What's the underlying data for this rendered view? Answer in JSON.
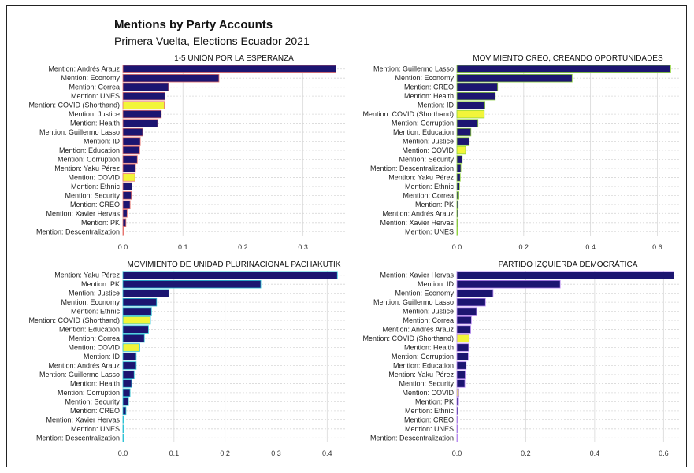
{
  "title": "Mentions by Party Accounts",
  "subtitle": "Primera Vuelta, Elections Ecuador 2021",
  "colors": {
    "bar_fill": "#1c1571",
    "highlight_fill": "#f2f53a",
    "grid": "#d8d8d8"
  },
  "chart_data": [
    {
      "type": "bar",
      "orientation": "horizontal",
      "title": "1-5 UNIÓN POR LA ESPERANZA",
      "outline_color": "#e8746e",
      "xlim": [
        0,
        0.37
      ],
      "xticks": [
        0.0,
        0.1,
        0.2,
        0.3
      ],
      "xtick_labels": [
        "0.0",
        "0.1",
        "0.2",
        "0.3"
      ],
      "categories": [
        "Mention: Andrés Arauz",
        "Mention: Economy",
        "Mention: Correa",
        "Mention: UNES",
        "Mention: COVID (Shorthand)",
        "Mention: Justice",
        "Mention: Health",
        "Mention: Guillermo Lasso",
        "Mention: ID",
        "Mention: Education",
        "Mention: Corruption",
        "Mention: Yaku Pérez",
        "Mention: COVID",
        "Mention: Ethnic",
        "Mention: Security",
        "Mention: CREO",
        "Mention: Xavier Hervas",
        "Mention: PK",
        "Mention: Descentralization"
      ],
      "values": [
        0.355,
        0.16,
        0.076,
        0.07,
        0.069,
        0.064,
        0.058,
        0.033,
        0.029,
        0.028,
        0.024,
        0.021,
        0.02,
        0.015,
        0.014,
        0.012,
        0.007,
        0.005,
        0.001
      ],
      "highlighted": [
        "Mention: COVID (Shorthand)",
        "Mention: COVID"
      ]
    },
    {
      "type": "bar",
      "orientation": "horizontal",
      "title": "MOVIMIENTO CREO, CREANDO OPORTUNIDADES",
      "outline_color": "#8fd33c",
      "xlim": [
        0,
        0.665
      ],
      "xticks": [
        0.0,
        0.2,
        0.4,
        0.6
      ],
      "xtick_labels": [
        "0.0",
        "0.2",
        "0.4",
        "0.6"
      ],
      "categories": [
        "Mention: Guillermo Lasso",
        "Mention: Economy",
        "Mention: CREO",
        "Mention: Health",
        "Mention: ID",
        "Mention: COVID (Shorthand)",
        "Mention: Corruption",
        "Mention: Education",
        "Mention: Justice",
        "Mention: COVID",
        "Mention: Security",
        "Mention: Descentralization",
        "Mention: Yaku Pérez",
        "Mention: Ethnic",
        "Mention: Correa",
        "Mention: PK",
        "Mention: Andrés Arauz",
        "Mention: Xavier Hervas",
        "Mention: UNES"
      ],
      "values": [
        0.64,
        0.345,
        0.122,
        0.115,
        0.084,
        0.082,
        0.063,
        0.042,
        0.037,
        0.026,
        0.016,
        0.012,
        0.01,
        0.008,
        0.006,
        0.004,
        0.003,
        0.002,
        0.001
      ],
      "highlighted": [
        "Mention: COVID (Shorthand)",
        "Mention: COVID"
      ]
    },
    {
      "type": "bar",
      "orientation": "horizontal",
      "title": "MOVIMIENTO DE UNIDAD PLURINACIONAL PACHAKUTIK",
      "outline_color": "#2ec4d6",
      "xlim": [
        0,
        0.435
      ],
      "xticks": [
        0.0,
        0.1,
        0.2,
        0.3,
        0.4
      ],
      "xtick_labels": [
        "0.0",
        "0.1",
        "0.2",
        "0.3",
        "0.4"
      ],
      "categories": [
        "Mention: Yaku Pérez",
        "Mention: PK",
        "Mention: Justice",
        "Mention: Economy",
        "Mention: Ethnic",
        "Mention: COVID (Shorthand)",
        "Mention: Education",
        "Mention: Correa",
        "Mention: COVID",
        "Mention: ID",
        "Mention: Andrés Arauz",
        "Mention: Guillermo Lasso",
        "Mention: Health",
        "Mention: Corruption",
        "Mention: Security",
        "Mention: CREO",
        "Mention: Xavier Hervas",
        "Mention: UNES",
        "Mention: Descentralization"
      ],
      "values": [
        0.42,
        0.27,
        0.09,
        0.066,
        0.056,
        0.054,
        0.05,
        0.042,
        0.033,
        0.026,
        0.026,
        0.022,
        0.017,
        0.014,
        0.011,
        0.006,
        0.001,
        0.001,
        0.001
      ],
      "highlighted": [
        "Mention: COVID (Shorthand)",
        "Mention: COVID"
      ]
    },
    {
      "type": "bar",
      "orientation": "horizontal",
      "title": "PARTIDO IZQUIERDA DEMOCRÁTICA",
      "outline_color": "#b98bf2",
      "xlim": [
        0,
        0.645
      ],
      "xticks": [
        0.0,
        0.2,
        0.4,
        0.6
      ],
      "xtick_labels": [
        "0.0",
        "0.2",
        "0.4",
        "0.6"
      ],
      "categories": [
        "Mention: Xavier Hervas",
        "Mention: ID",
        "Mention: Economy",
        "Mention: Guillermo Lasso",
        "Mention: Justice",
        "Mention: Correa",
        "Mention: Andrés Arauz",
        "Mention: COVID (Shorthand)",
        "Mention: Health",
        "Mention: Corruption",
        "Mention: Education",
        "Mention: Yaku Pérez",
        "Mention: Security",
        "Mention: COVID",
        "Mention: PK",
        "Mention: Ethnic",
        "Mention: CREO",
        "Mention: UNES",
        "Mention: Descentralization"
      ],
      "values": [
        0.63,
        0.3,
        0.105,
        0.083,
        0.057,
        0.042,
        0.04,
        0.036,
        0.034,
        0.033,
        0.027,
        0.024,
        0.023,
        0.006,
        0.005,
        0.003,
        0.002,
        0.002,
        0.001
      ],
      "highlighted": [
        "Mention: COVID (Shorthand)",
        "Mention: COVID"
      ]
    }
  ]
}
